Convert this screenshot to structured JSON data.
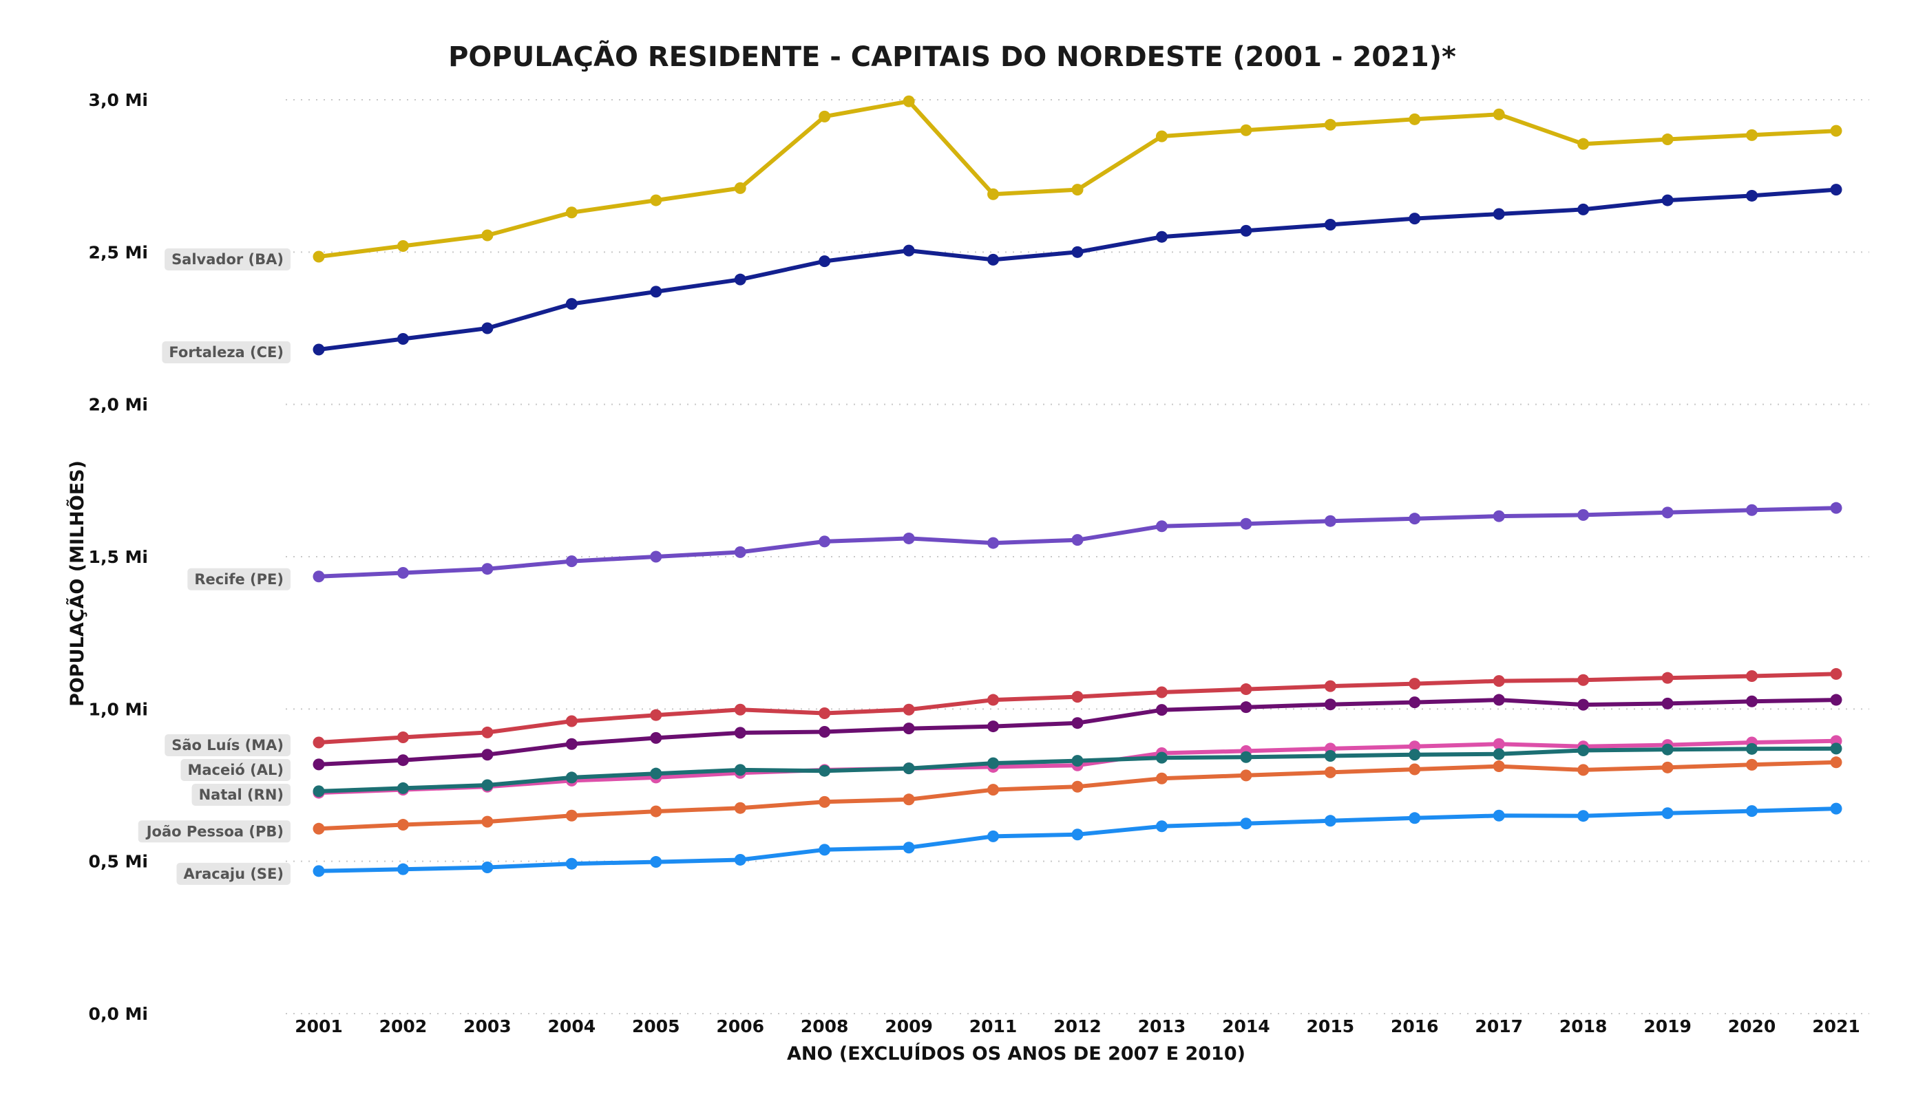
{
  "chart_data": {
    "type": "line",
    "title": "POPULAÇÃO RESIDENTE - CAPITAIS DO NORDESTE (2001 - 2021)*",
    "xlabel": "ANO (EXCLUÍDOS OS ANOS DE 2007 E 2010)",
    "ylabel": "POPULAÇÃO (MILHÕES)",
    "x": [
      "2001",
      "2002",
      "2003",
      "2004",
      "2005",
      "2006",
      "2008",
      "2009",
      "2011",
      "2012",
      "2013",
      "2014",
      "2015",
      "2016",
      "2017",
      "2018",
      "2019",
      "2020",
      "2021"
    ],
    "ylim": [
      0,
      3.0
    ],
    "yticks": [
      {
        "value": 0,
        "label": "0,0 Mi"
      },
      {
        "value": 0.5,
        "label": "0,5 Mi"
      },
      {
        "value": 1.0,
        "label": "1,0 Mi"
      },
      {
        "value": 1.5,
        "label": "1,5 Mi"
      },
      {
        "value": 2.0,
        "label": "2,0 Mi"
      },
      {
        "value": 2.5,
        "label": "2,5 Mi"
      },
      {
        "value": 3.0,
        "label": "3,0 Mi"
      }
    ],
    "grid": true,
    "series": [
      {
        "name": "Salvador (BA)",
        "color": "#D4B20D",
        "values": [
          2.485,
          2.52,
          2.555,
          2.63,
          2.67,
          2.71,
          2.945,
          2.995,
          2.69,
          2.705,
          2.88,
          2.9,
          2.918,
          2.936,
          2.952,
          2.855,
          2.87,
          2.884,
          2.898
        ]
      },
      {
        "name": "Fortaleza (CE)",
        "color": "#13208F",
        "values": [
          2.18,
          2.215,
          2.25,
          2.33,
          2.37,
          2.41,
          2.47,
          2.505,
          2.475,
          2.5,
          2.55,
          2.57,
          2.59,
          2.61,
          2.625,
          2.64,
          2.67,
          2.685,
          2.705
        ]
      },
      {
        "name": "Recife (PE)",
        "color": "#6F4BC3",
        "values": [
          1.435,
          1.447,
          1.46,
          1.485,
          1.5,
          1.515,
          1.55,
          1.56,
          1.545,
          1.555,
          1.6,
          1.608,
          1.617,
          1.625,
          1.633,
          1.637,
          1.645,
          1.653,
          1.66
        ]
      },
      {
        "name": "São Luís (MA)",
        "color": "#CC3E4A",
        "values": [
          0.89,
          0.907,
          0.923,
          0.96,
          0.98,
          0.998,
          0.986,
          0.998,
          1.03,
          1.04,
          1.055,
          1.065,
          1.075,
          1.083,
          1.092,
          1.095,
          1.102,
          1.108,
          1.115
        ]
      },
      {
        "name": "Maceió (AL)",
        "color": "#6A0E70",
        "values": [
          0.818,
          0.832,
          0.85,
          0.885,
          0.905,
          0.922,
          0.925,
          0.936,
          0.943,
          0.954,
          0.997,
          1.006,
          1.015,
          1.022,
          1.03,
          1.014,
          1.018,
          1.025,
          1.03
        ]
      },
      {
        "name": "Natal (RN)",
        "color": "#DD4FA9",
        "values": [
          0.725,
          0.735,
          0.745,
          0.765,
          0.775,
          0.79,
          0.8,
          0.805,
          0.81,
          0.815,
          0.855,
          0.862,
          0.87,
          0.877,
          0.885,
          0.877,
          0.882,
          0.89,
          0.895
        ]
      },
      {
        "name": "Natal (RN) - teal",
        "color": "#1C6F73",
        "values": [
          0.73,
          0.74,
          0.75,
          0.775,
          0.788,
          0.8,
          0.797,
          0.805,
          0.822,
          0.83,
          0.84,
          0.842,
          0.846,
          0.85,
          0.852,
          0.864,
          0.867,
          0.869,
          0.87
        ]
      },
      {
        "name": "João Pessoa (PB)",
        "color": "#E26A38",
        "values": [
          0.607,
          0.62,
          0.63,
          0.65,
          0.664,
          0.675,
          0.695,
          0.703,
          0.735,
          0.745,
          0.772,
          0.782,
          0.792,
          0.802,
          0.812,
          0.8,
          0.808,
          0.817,
          0.825
        ]
      },
      {
        "name": "Aracaju (SE)",
        "color": "#1C8CF2",
        "values": [
          0.468,
          0.474,
          0.48,
          0.492,
          0.498,
          0.505,
          0.538,
          0.545,
          0.582,
          0.588,
          0.615,
          0.624,
          0.633,
          0.642,
          0.65,
          0.649,
          0.658,
          0.665,
          0.673
        ]
      }
    ],
    "series_labels": [
      {
        "text": "Salvador (BA)",
        "series": 0
      },
      {
        "text": "Fortaleza (CE)",
        "series": 1
      },
      {
        "text": "Recife (PE)",
        "series": 2
      },
      {
        "text": "São Luís (MA)",
        "series": 3
      },
      {
        "text": "Maceió (AL)",
        "series": 4
      },
      {
        "text": "Natal (RN)",
        "series": 6
      },
      {
        "text": "João Pessoa (PB)",
        "series": 7
      },
      {
        "text": "Aracaju (SE)",
        "series": 8
      }
    ]
  }
}
